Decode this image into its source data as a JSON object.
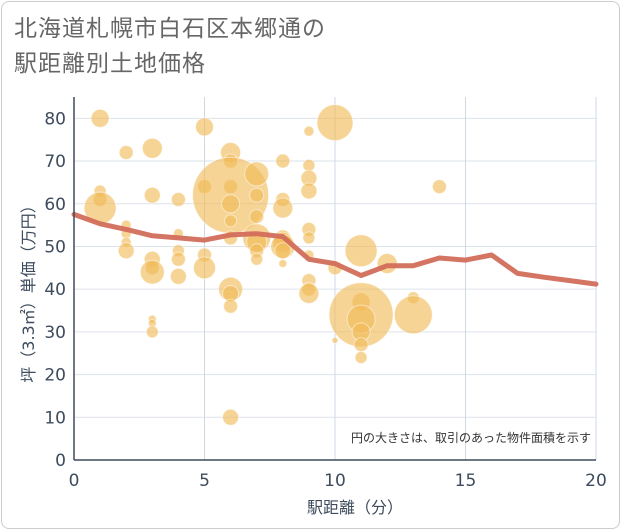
{
  "title": "北海道札幌市白石区本郷通の\n駅距離別土地価格",
  "chart_data": {
    "type": "scatter",
    "title": "北海道札幌市白石区本郷通の駅距離別土地価格",
    "xlabel": "駅距離（分）",
    "ylabel": "坪（3.3㎡）単価（万円）",
    "xlim": [
      0,
      20
    ],
    "ylim": [
      0,
      85
    ],
    "xticks": [
      "0",
      "5",
      "10",
      "15",
      "20"
    ],
    "yticks": [
      "0",
      "10",
      "20",
      "30",
      "40",
      "50",
      "60",
      "70",
      "80"
    ],
    "grid": true,
    "note": "円の大きさは、取引のあった物件面積を示す",
    "bubble_color": "#f0b956",
    "line_color": "#d26d5a",
    "bubbles": [
      {
        "x": 1,
        "y": 80,
        "s": 9
      },
      {
        "x": 1,
        "y": 63,
        "s": 6
      },
      {
        "x": 1,
        "y": 61,
        "s": 7
      },
      {
        "x": 1,
        "y": 59,
        "s": 16
      },
      {
        "x": 2,
        "y": 72,
        "s": 7
      },
      {
        "x": 2,
        "y": 55,
        "s": 5
      },
      {
        "x": 2,
        "y": 53,
        "s": 5
      },
      {
        "x": 2,
        "y": 51,
        "s": 5
      },
      {
        "x": 2,
        "y": 49,
        "s": 8
      },
      {
        "x": 3,
        "y": 73,
        "s": 10
      },
      {
        "x": 3,
        "y": 62,
        "s": 8
      },
      {
        "x": 3,
        "y": 47,
        "s": 8
      },
      {
        "x": 3,
        "y": 45,
        "s": 7
      },
      {
        "x": 3,
        "y": 44,
        "s": 12
      },
      {
        "x": 3,
        "y": 33,
        "s": 4
      },
      {
        "x": 3,
        "y": 32,
        "s": 4
      },
      {
        "x": 3,
        "y": 30,
        "s": 6
      },
      {
        "x": 4,
        "y": 61,
        "s": 7
      },
      {
        "x": 4,
        "y": 53,
        "s": 5
      },
      {
        "x": 4,
        "y": 49,
        "s": 6
      },
      {
        "x": 4,
        "y": 47,
        "s": 7
      },
      {
        "x": 4,
        "y": 43,
        "s": 8
      },
      {
        "x": 5,
        "y": 78,
        "s": 9
      },
      {
        "x": 5,
        "y": 64,
        "s": 7
      },
      {
        "x": 5,
        "y": 48,
        "s": 7
      },
      {
        "x": 5,
        "y": 45,
        "s": 11
      },
      {
        "x": 6,
        "y": 72,
        "s": 10
      },
      {
        "x": 6,
        "y": 70,
        "s": 7
      },
      {
        "x": 6,
        "y": 64,
        "s": 7
      },
      {
        "x": 6,
        "y": 62,
        "s": 38
      },
      {
        "x": 6,
        "y": 60,
        "s": 9
      },
      {
        "x": 6,
        "y": 56,
        "s": 6
      },
      {
        "x": 6,
        "y": 52,
        "s": 7
      },
      {
        "x": 6,
        "y": 40,
        "s": 12
      },
      {
        "x": 6,
        "y": 39,
        "s": 8
      },
      {
        "x": 6,
        "y": 36,
        "s": 7
      },
      {
        "x": 6,
        "y": 10,
        "s": 8
      },
      {
        "x": 7,
        "y": 67,
        "s": 12
      },
      {
        "x": 7,
        "y": 62,
        "s": 7
      },
      {
        "x": 7,
        "y": 57,
        "s": 7
      },
      {
        "x": 7,
        "y": 52,
        "s": 14
      },
      {
        "x": 7,
        "y": 51,
        "s": 10
      },
      {
        "x": 7,
        "y": 49,
        "s": 7
      },
      {
        "x": 7,
        "y": 47,
        "s": 6
      },
      {
        "x": 8,
        "y": 70,
        "s": 7
      },
      {
        "x": 8,
        "y": 61,
        "s": 7
      },
      {
        "x": 8,
        "y": 59,
        "s": 10
      },
      {
        "x": 8,
        "y": 52,
        "s": 8
      },
      {
        "x": 8,
        "y": 51,
        "s": 10
      },
      {
        "x": 8,
        "y": 50,
        "s": 12
      },
      {
        "x": 8,
        "y": 49,
        "s": 8
      },
      {
        "x": 8,
        "y": 46,
        "s": 4
      },
      {
        "x": 9,
        "y": 77,
        "s": 5
      },
      {
        "x": 9,
        "y": 69,
        "s": 6
      },
      {
        "x": 9,
        "y": 66,
        "s": 8
      },
      {
        "x": 9,
        "y": 63,
        "s": 8
      },
      {
        "x": 9,
        "y": 54,
        "s": 7
      },
      {
        "x": 9,
        "y": 52,
        "s": 6
      },
      {
        "x": 9,
        "y": 48,
        "s": 5
      },
      {
        "x": 9,
        "y": 42,
        "s": 7
      },
      {
        "x": 9,
        "y": 40,
        "s": 7
      },
      {
        "x": 9,
        "y": 39,
        "s": 10
      },
      {
        "x": 10,
        "y": 79,
        "s": 18
      },
      {
        "x": 10,
        "y": 45,
        "s": 7
      },
      {
        "x": 10,
        "y": 28,
        "s": 3
      },
      {
        "x": 11,
        "y": 49,
        "s": 16
      },
      {
        "x": 11,
        "y": 37,
        "s": 9
      },
      {
        "x": 11,
        "y": 34,
        "s": 32
      },
      {
        "x": 11,
        "y": 33,
        "s": 14
      },
      {
        "x": 11,
        "y": 30,
        "s": 9
      },
      {
        "x": 11,
        "y": 27,
        "s": 7
      },
      {
        "x": 11,
        "y": 24,
        "s": 6
      },
      {
        "x": 12,
        "y": 46,
        "s": 10
      },
      {
        "x": 13,
        "y": 38,
        "s": 6
      },
      {
        "x": 13,
        "y": 34,
        "s": 19
      },
      {
        "x": 14,
        "y": 64,
        "s": 7
      }
    ],
    "average_line": [
      {
        "x": 0,
        "y": 57.5
      },
      {
        "x": 1,
        "y": 55.3
      },
      {
        "x": 2,
        "y": 54.0
      },
      {
        "x": 3,
        "y": 52.5
      },
      {
        "x": 4,
        "y": 52.0
      },
      {
        "x": 5,
        "y": 51.5
      },
      {
        "x": 6,
        "y": 52.7
      },
      {
        "x": 7,
        "y": 53.0
      },
      {
        "x": 8,
        "y": 52.3
      },
      {
        "x": 9,
        "y": 47.0
      },
      {
        "x": 10,
        "y": 46.0
      },
      {
        "x": 11,
        "y": 43.2
      },
      {
        "x": 12,
        "y": 45.5
      },
      {
        "x": 13,
        "y": 45.5
      },
      {
        "x": 14,
        "y": 47.3
      },
      {
        "x": 15,
        "y": 46.8
      },
      {
        "x": 16,
        "y": 48.0
      },
      {
        "x": 17,
        "y": 43.7
      },
      {
        "x": 18,
        "y": 42.8
      },
      {
        "x": 19,
        "y": 42.0
      },
      {
        "x": 20,
        "y": 41.2
      }
    ]
  }
}
